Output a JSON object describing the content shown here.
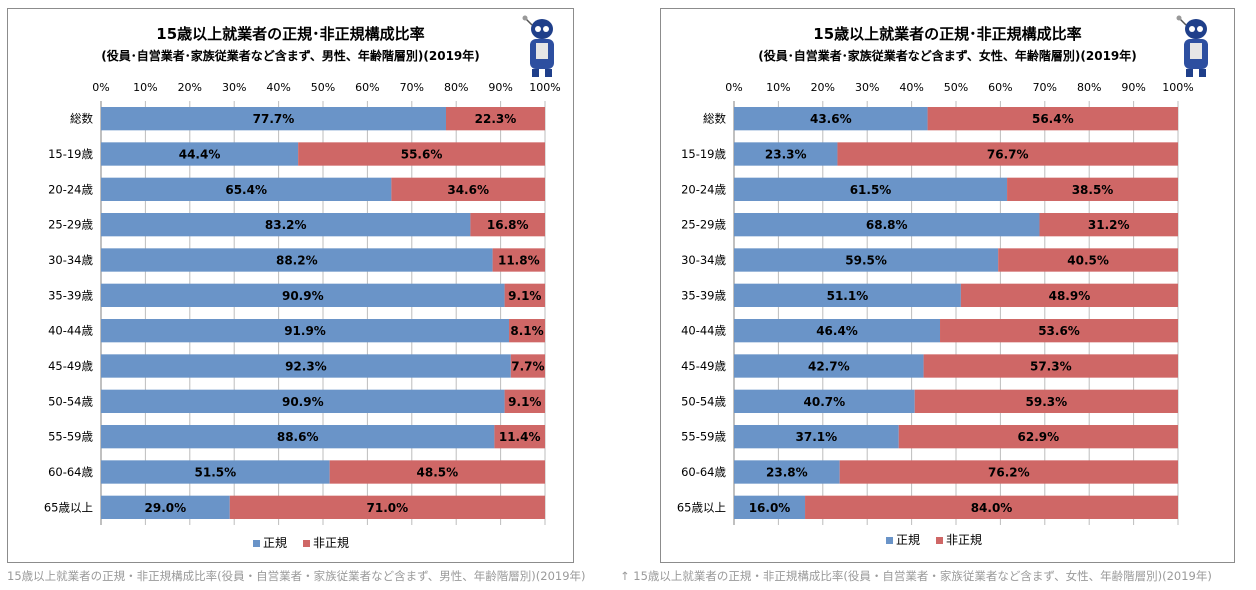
{
  "colors": {
    "regular": "#6a94c8",
    "nonregular": "#cf6766",
    "grid": "#bdbdbd",
    "axis": "#808080"
  },
  "charts": [
    {
      "title": "15歳以上就業者の正規･非正規構成比率",
      "subtitle": "(役員･自営業者･家族従業者など含まず、男性、年齢階層別)(2019年)",
      "caption": "15歳以上就業者の正規・非正規構成比率(役員・自営業者・家族従業者など含まず、男性、年齢階層別)(2019年)"
    },
    {
      "title": "15歳以上就業者の正規･非正規構成比率",
      "subtitle": "(役員･自営業者･家族従業者など含まず、女性、年齢階層別)(2019年)",
      "caption": "↑ 15歳以上就業者の正規・非正規構成比率(役員・自営業者・家族従業者など含まず、女性、年齢階層別)(2019年)"
    }
  ],
  "chart_data": [
    {
      "type": "bar",
      "orientation": "horizontal",
      "stacked": true,
      "categories": [
        "総数",
        "15-19歳",
        "20-24歳",
        "25-29歳",
        "30-34歳",
        "35-39歳",
        "40-44歳",
        "45-49歳",
        "50-54歳",
        "55-59歳",
        "60-64歳",
        "65歳以上"
      ],
      "series": [
        {
          "name": "正規",
          "values": [
            77.7,
            44.4,
            65.4,
            83.2,
            88.2,
            90.9,
            91.9,
            92.3,
            90.9,
            88.6,
            51.5,
            29.0
          ]
        },
        {
          "name": "非正規",
          "values": [
            22.3,
            55.6,
            34.6,
            16.8,
            11.8,
            9.1,
            8.1,
            7.7,
            9.1,
            11.4,
            48.5,
            71.0
          ]
        }
      ],
      "xlim": [
        0,
        100
      ],
      "x_ticks": [
        "0%",
        "10%",
        "20%",
        "30%",
        "40%",
        "50%",
        "60%",
        "70%",
        "80%",
        "90%",
        "100%"
      ],
      "grid": true,
      "legend": "bottom"
    },
    {
      "type": "bar",
      "orientation": "horizontal",
      "stacked": true,
      "categories": [
        "総数",
        "15-19歳",
        "20-24歳",
        "25-29歳",
        "30-34歳",
        "35-39歳",
        "40-44歳",
        "45-49歳",
        "50-54歳",
        "55-59歳",
        "60-64歳",
        "65歳以上"
      ],
      "series": [
        {
          "name": "正規",
          "values": [
            43.6,
            23.3,
            61.5,
            68.8,
            59.5,
            51.1,
            46.4,
            42.7,
            40.7,
            37.1,
            23.8,
            16.0
          ]
        },
        {
          "name": "非正規",
          "values": [
            56.4,
            76.7,
            38.5,
            31.2,
            40.5,
            48.9,
            53.6,
            57.3,
            59.3,
            62.9,
            76.2,
            84.0
          ]
        }
      ],
      "xlim": [
        0,
        100
      ],
      "x_ticks": [
        "0%",
        "10%",
        "20%",
        "30%",
        "40%",
        "50%",
        "60%",
        "70%",
        "80%",
        "90%",
        "100%"
      ],
      "grid": true,
      "legend": "bottom"
    }
  ]
}
